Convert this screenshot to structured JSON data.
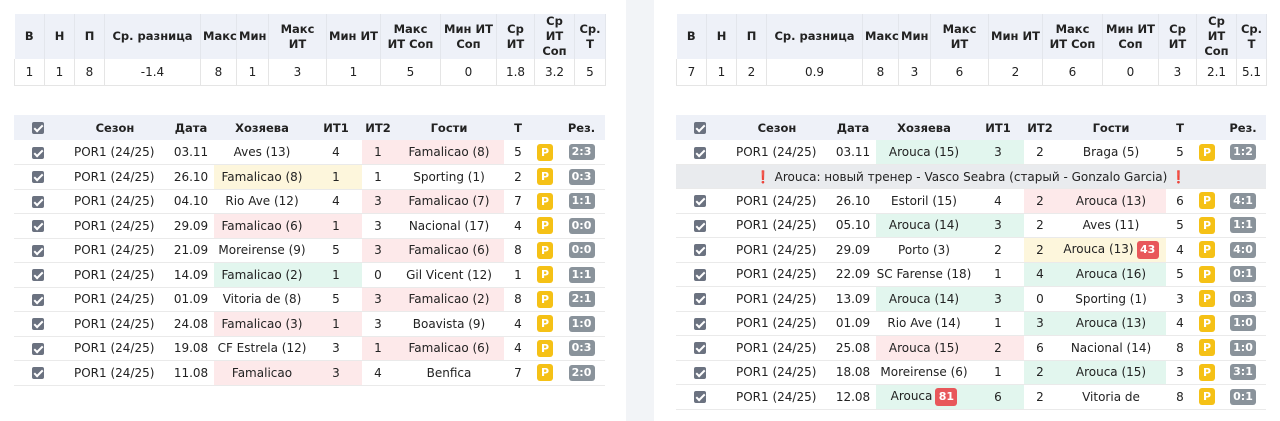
{
  "stats_headers": [
    "В",
    "Н",
    "П",
    "Ср. разница",
    "Макс",
    "Мин",
    "Макс ИТ",
    "Мин ИТ",
    "Макс ИТ Соп",
    "Мин ИТ Соп",
    "Ср ИТ",
    "Ср ИТ Соп",
    "Ср. Т"
  ],
  "games_headers": [
    "Сезон",
    "Дата",
    "Хозяева",
    "ИТ1",
    "ИТ2",
    "Гости",
    "Т",
    "Рез."
  ],
  "colors": {
    "badge_p": "#f5c116",
    "score_badge": "#8a939b",
    "red_highlight": "#fde9ea",
    "green_highlight": "#e2f6ee",
    "yellow_highlight": "#fdf6dc",
    "alert_badge": "#e8575a"
  },
  "left": {
    "stats": [
      "1",
      "1",
      "8",
      "-1.4",
      "8",
      "1",
      "3",
      "1",
      "5",
      "0",
      "1.8",
      "3.2",
      "5"
    ],
    "rows": [
      {
        "season": "POR1 (24/25)",
        "date": "03.11",
        "home": "Aves (13)",
        "it1": "4",
        "it2": "1",
        "away": "Famalicao (8)",
        "t": "5",
        "p": "P",
        "res": "2:3"
      },
      {
        "season": "POR1 (24/25)",
        "date": "26.10",
        "home": "Famalicao (8)",
        "it1": "1",
        "it2": "1",
        "away": "Sporting (1)",
        "t": "2",
        "p": "P",
        "res": "0:3"
      },
      {
        "season": "POR1 (24/25)",
        "date": "04.10",
        "home": "Rio Ave (12)",
        "it1": "4",
        "it2": "3",
        "away": "Famalicao (7)",
        "t": "7",
        "p": "P",
        "res": "1:1"
      },
      {
        "season": "POR1 (24/25)",
        "date": "29.09",
        "home": "Famalicao (6)",
        "it1": "1",
        "it2": "3",
        "away": "Nacional (17)",
        "t": "4",
        "p": "P",
        "res": "0:0"
      },
      {
        "season": "POR1 (24/25)",
        "date": "21.09",
        "home": "Moreirense (9)",
        "it1": "5",
        "it2": "3",
        "away": "Famalicao (6)",
        "t": "8",
        "p": "P",
        "res": "0:0"
      },
      {
        "season": "POR1 (24/25)",
        "date": "14.09",
        "home": "Famalicao (2)",
        "it1": "1",
        "it2": "0",
        "away": "Gil Vicent (12)",
        "t": "1",
        "p": "P",
        "res": "1:1"
      },
      {
        "season": "POR1 (24/25)",
        "date": "01.09",
        "home": "Vitoria de (8)",
        "it1": "5",
        "it2": "3",
        "away": "Famalicao (2)",
        "t": "8",
        "p": "P",
        "res": "2:1"
      },
      {
        "season": "POR1 (24/25)",
        "date": "24.08",
        "home": "Famalicao (3)",
        "it1": "1",
        "it2": "3",
        "away": "Boavista (9)",
        "t": "4",
        "p": "P",
        "res": "1:0"
      },
      {
        "season": "POR1 (24/25)",
        "date": "19.08",
        "home": "CF Estrela (12)",
        "it1": "3",
        "it2": "1",
        "away": "Famalicao (6)",
        "t": "4",
        "p": "P",
        "res": "0:3"
      },
      {
        "season": "POR1 (24/25)",
        "date": "11.08",
        "home": "Famalicao",
        "it1": "3",
        "it2": "4",
        "away": "Benfica",
        "t": "7",
        "p": "P",
        "res": "2:0"
      }
    ]
  },
  "right": {
    "stats": [
      "7",
      "1",
      "2",
      "0.9",
      "8",
      "3",
      "6",
      "2",
      "6",
      "0",
      "3",
      "2.1",
      "5.1"
    ],
    "first_row": {
      "season": "POR1 (24/25)",
      "date": "03.11",
      "home": "Arouca (15)",
      "it1": "3",
      "it2": "2",
      "away": "Braga (5)",
      "t": "5",
      "p": "P",
      "res": "1:2"
    },
    "note": {
      "mark": "❗",
      "text": "Arouca: новый тренер - Vasco Seabra (старый - Gonzalo Garcia)"
    },
    "rows": [
      {
        "season": "POR1 (24/25)",
        "date": "26.10",
        "home": "Estoril (15)",
        "it1": "4",
        "it2": "2",
        "away": "Arouca (13)",
        "t": "6",
        "p": "P",
        "res": "4:1"
      },
      {
        "season": "POR1 (24/25)",
        "date": "05.10",
        "home": "Arouca (14)",
        "it1": "3",
        "it2": "2",
        "away": "Aves (11)",
        "t": "5",
        "p": "P",
        "res": "1:1"
      },
      {
        "season": "POR1 (24/25)",
        "date": "29.09",
        "home": "Porto (3)",
        "it1": "2",
        "it2": "2",
        "away": "Arouca (13)",
        "away_badge": "43",
        "t": "4",
        "p": "P",
        "res": "4:0"
      },
      {
        "season": "POR1 (24/25)",
        "date": "22.09",
        "home": "SC Farense (18)",
        "it1": "1",
        "it2": "4",
        "away": "Arouca (16)",
        "t": "5",
        "p": "P",
        "res": "0:1"
      },
      {
        "season": "POR1 (24/25)",
        "date": "13.09",
        "home": "Arouca (14)",
        "it1": "3",
        "it2": "0",
        "away": "Sporting (1)",
        "t": "3",
        "p": "P",
        "res": "0:3"
      },
      {
        "season": "POR1 (24/25)",
        "date": "01.09",
        "home": "Rio Ave (14)",
        "it1": "1",
        "it2": "3",
        "away": "Arouca (13)",
        "t": "4",
        "p": "P",
        "res": "1:0"
      },
      {
        "season": "POR1 (24/25)",
        "date": "25.08",
        "home": "Arouca (15)",
        "it1": "2",
        "it2": "6",
        "away": "Nacional (14)",
        "t": "8",
        "p": "P",
        "res": "1:0"
      },
      {
        "season": "POR1 (24/25)",
        "date": "18.08",
        "home": "Moreirense (6)",
        "it1": "1",
        "it2": "2",
        "away": "Arouca (15)",
        "t": "3",
        "p": "P",
        "res": "3:1"
      },
      {
        "season": "POR1 (24/25)",
        "date": "12.08",
        "home": "Arouca",
        "home_badge": "81",
        "it1": "6",
        "it2": "2",
        "away": "Vitoria de",
        "t": "8",
        "p": "P",
        "res": "0:1"
      }
    ]
  }
}
